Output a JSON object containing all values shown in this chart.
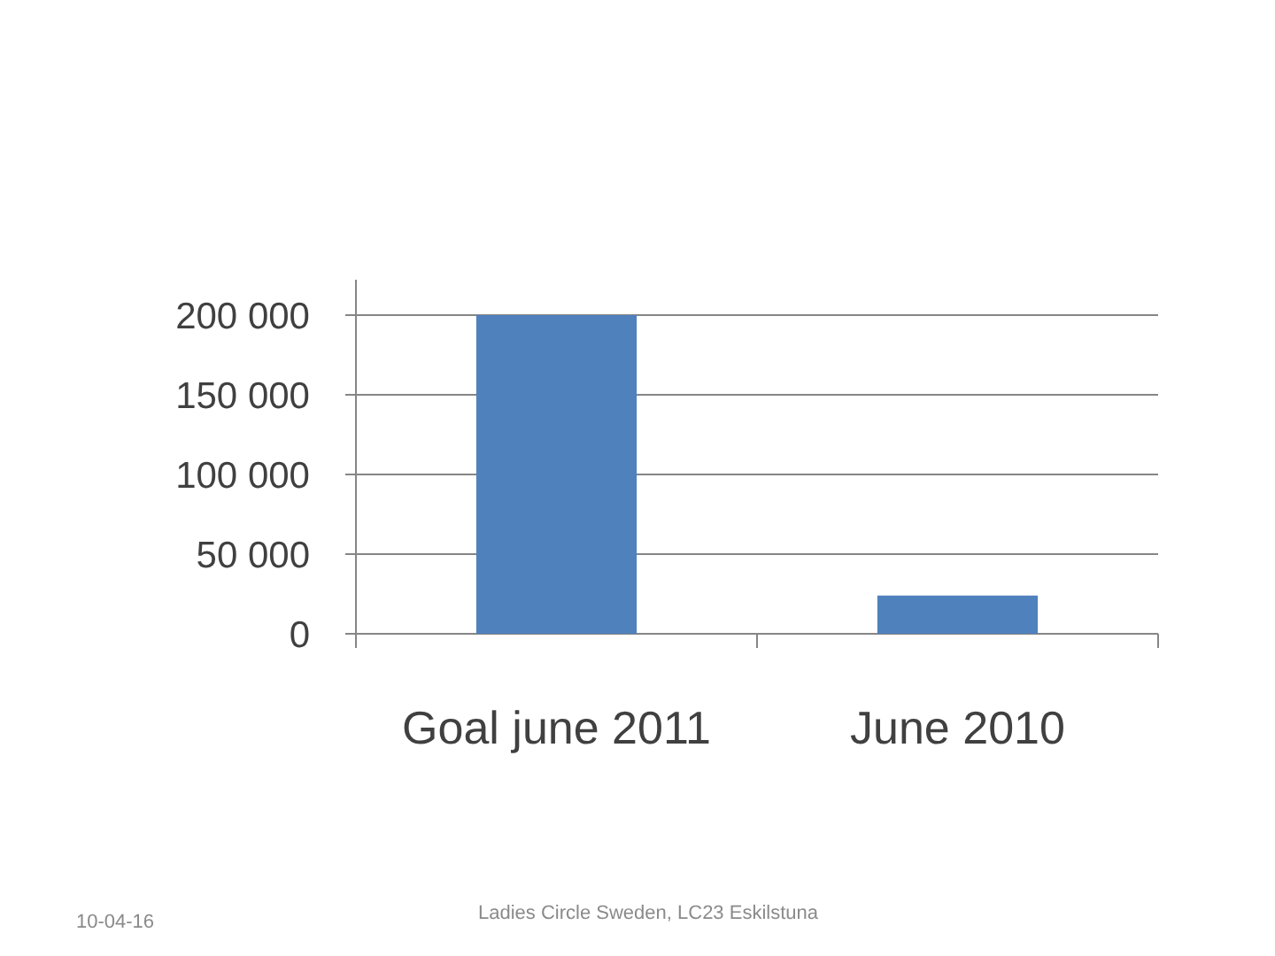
{
  "chart_data": {
    "type": "bar",
    "categories": [
      "Goal june 2011",
      "June 2010"
    ],
    "values": [
      200000,
      24000
    ],
    "color": "#4f81bd",
    "ylim": [
      0,
      200000
    ],
    "yticks": [
      {
        "value": 0,
        "label": "0"
      },
      {
        "value": 50000,
        "label": "50 000"
      },
      {
        "value": 100000,
        "label": "100 000"
      },
      {
        "value": 150000,
        "label": "150 000"
      },
      {
        "value": 200000,
        "label": "200 000"
      }
    ],
    "grid": "y",
    "annotations": [
      "10-04-16",
      "Ladies Circle Sweden, LC23 Eskilstuna"
    ]
  }
}
